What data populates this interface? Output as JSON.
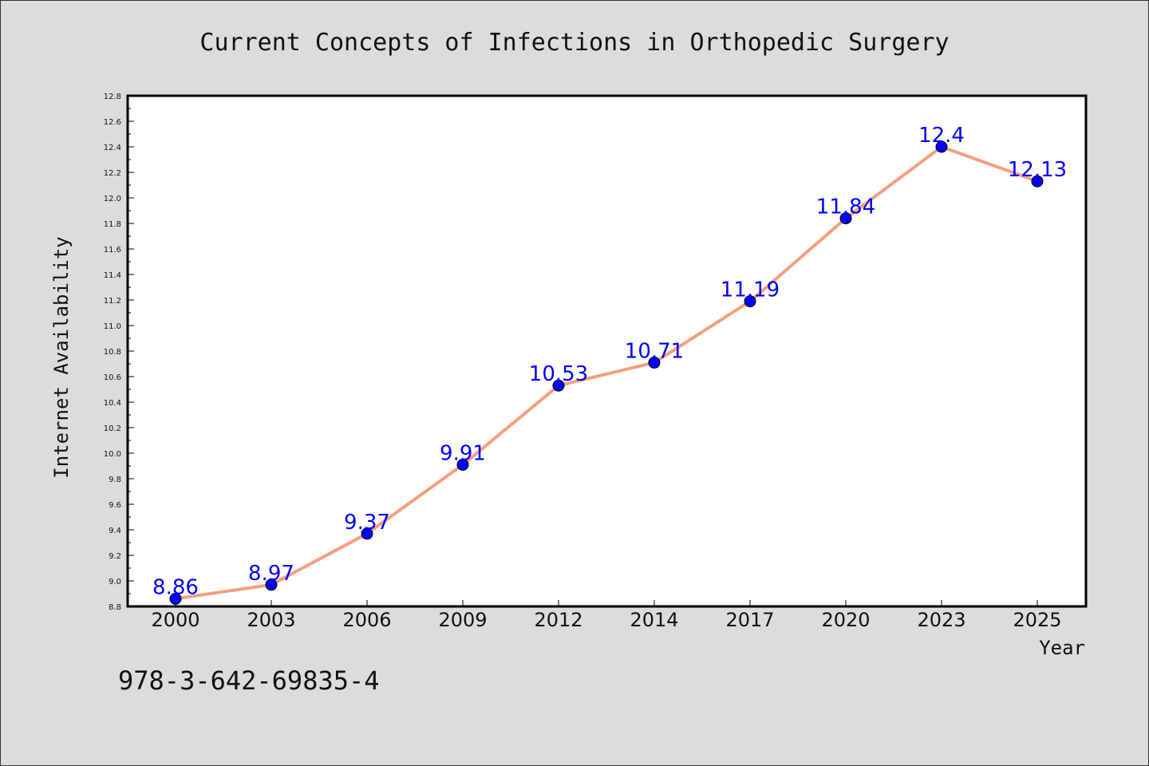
{
  "chart_data": {
    "type": "line",
    "title": "Current Concepts of Infections in Orthopedic Surgery",
    "xlabel": "Year",
    "ylabel": "Internet Availability",
    "categories": [
      "2000",
      "2003",
      "2006",
      "2009",
      "2012",
      "2014",
      "2017",
      "2020",
      "2023",
      "2025"
    ],
    "series": [
      {
        "values": [
          8.86,
          8.97,
          9.37,
          9.91,
          10.53,
          10.71,
          11.19,
          11.84,
          12.4,
          12.13
        ],
        "labels": [
          "8.86",
          "8.97",
          "9.37",
          "9.91",
          "10.53",
          "10.71",
          "11.19",
          "11.84",
          "12.4",
          "12.13"
        ],
        "line_color": "#f4a07e",
        "marker_color": "#0000ff"
      }
    ],
    "ylim": [
      8.8,
      12.8
    ],
    "ytick_step": 0.2,
    "grid": false,
    "legend": "none"
  },
  "footer_text": "978-3-642-69835-4",
  "colors": {
    "background": "#dcdcdc",
    "plot_background": "#ffffff"
  }
}
